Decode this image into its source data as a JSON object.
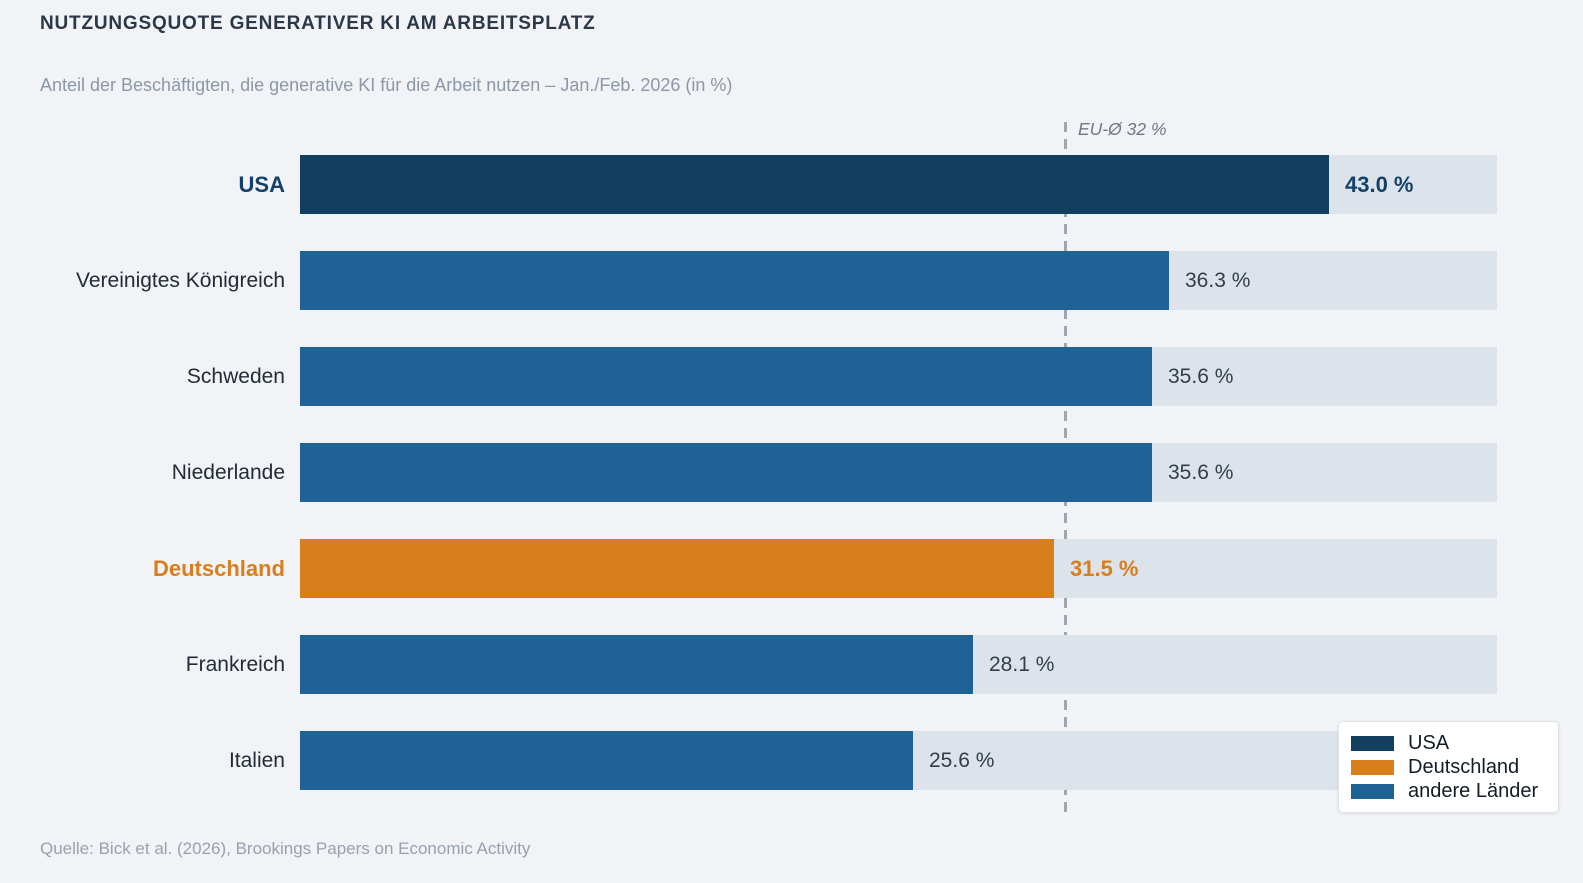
{
  "header": {
    "title": "NUTZUNGSQUOTE GENERATIVER KI AM ARBEITSPLATZ",
    "subtitle": "Anteil der Beschäftigten, die generative KI für die Arbeit nutzen – Jan./Feb. 2026 (in %)"
  },
  "footer": {
    "source": "Quelle: Bick et al. (2026), Brookings Papers on Economic Activity"
  },
  "colors": {
    "background": "#f1f3f6",
    "track": "#dce3eb",
    "usa": "#123f60",
    "germany": "#d87e1d",
    "other": "#1f6396",
    "usa_text": "#14416a",
    "germany_text": "#d87e1d",
    "default_text": "#333d4b",
    "reference_line": "#a1a7b0"
  },
  "legend": {
    "entries": [
      {
        "label": "USA",
        "color_key": "usa"
      },
      {
        "label": "Deutschland",
        "color_key": "germany"
      },
      {
        "label": "andere Länder",
        "color_key": "other"
      }
    ]
  },
  "chart_data": {
    "type": "bar",
    "orientation": "horizontal",
    "title": "NUTZUNGSQUOTE GENERATIVER KI AM ARBEITSPLATZ",
    "subtitle": "Anteil der Beschäftigten, die generative KI für die Arbeit nutzen – Jan./Feb. 2026 (in %)",
    "categories": [
      "USA",
      "Vereinigtes Königreich",
      "Schweden",
      "Niederlande",
      "Deutschland",
      "Frankreich",
      "Italien"
    ],
    "values": [
      43.0,
      36.3,
      35.6,
      35.6,
      31.5,
      28.1,
      25.6
    ],
    "value_labels": [
      "43.0 %",
      "36.3 %",
      "35.6 %",
      "35.6 %",
      "31.5 %",
      "28.1 %",
      "25.6 %"
    ],
    "emphasis": [
      "usa",
      "other",
      "other",
      "other",
      "germany",
      "other",
      "other"
    ],
    "xlim": [
      0,
      50
    ],
    "grid": false,
    "legend_position": "bottom-right",
    "reference_line": {
      "label": "EU-Ø 32 %",
      "value": 32
    },
    "source": "Quelle: Bick et al. (2026), Brookings Papers on Economic Activity"
  }
}
